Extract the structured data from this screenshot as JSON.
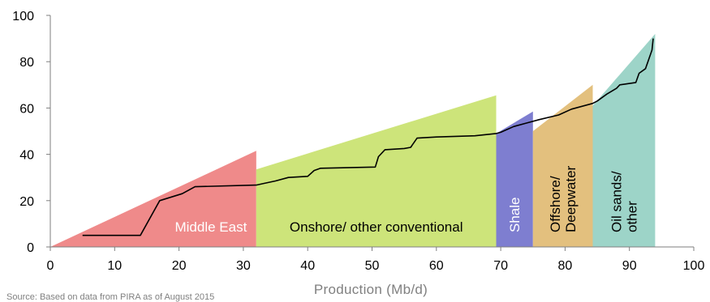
{
  "chart_data": {
    "type": "area",
    "xlabel": "Production (Mb/d)",
    "ylabel": "",
    "xlim": [
      0,
      100
    ],
    "ylim": [
      0,
      100
    ],
    "x_ticks": [
      0,
      10,
      20,
      30,
      40,
      50,
      60,
      70,
      80,
      90,
      100
    ],
    "y_ticks": [
      0,
      20,
      40,
      60,
      80,
      100
    ],
    "grid": false,
    "source_note": "Source: Based on data from PIRA as of August 2015",
    "regions": [
      {
        "name": "Middle East",
        "label_lines": [
          "Middle East"
        ],
        "label_color": "#ffffff",
        "label_orientation": "horizontal",
        "color": "#ef8a8a",
        "polygon": [
          [
            0,
            0
          ],
          [
            32,
            41.5
          ],
          [
            32,
            0
          ]
        ]
      },
      {
        "name": "Onshore/ other conventional",
        "label_lines": [
          "Onshore/ other conventional"
        ],
        "label_color": "#000000",
        "label_orientation": "horizontal",
        "color": "#cde47a",
        "polygon": [
          [
            32,
            0
          ],
          [
            32,
            33.5
          ],
          [
            69.3,
            65.5
          ],
          [
            69.3,
            0
          ]
        ]
      },
      {
        "name": "Shale",
        "label_lines": [
          "Shale"
        ],
        "label_color": "#ffffff",
        "label_orientation": "vertical",
        "color": "#7e7ed0",
        "polygon": [
          [
            69.3,
            0
          ],
          [
            69.3,
            49
          ],
          [
            75,
            58.5
          ],
          [
            75,
            0
          ]
        ]
      },
      {
        "name": "Offshore/ Deepwater",
        "label_lines": [
          "Offshore/",
          "Deepwater"
        ],
        "label_color": "#000000",
        "label_orientation": "vertical",
        "color": "#e3c07e",
        "polygon": [
          [
            75,
            0
          ],
          [
            75,
            50
          ],
          [
            84.3,
            70
          ],
          [
            84.3,
            0
          ]
        ]
      },
      {
        "name": "Oil sands/ other",
        "label_lines": [
          "Oil sands/",
          "other"
        ],
        "label_color": "#000000",
        "label_orientation": "vertical",
        "color": "#9dd4c8",
        "polygon": [
          [
            84.3,
            0
          ],
          [
            84.3,
            61
          ],
          [
            94,
            92
          ],
          [
            94,
            0
          ]
        ]
      }
    ],
    "series": [
      {
        "color": "#000000",
        "x": [
          5,
          14,
          17,
          20.5,
          22.5,
          32,
          33,
          35,
          37,
          40,
          41,
          42,
          50.5,
          51,
          52,
          55,
          56,
          57,
          60,
          66,
          69.3,
          70,
          72,
          74,
          76,
          79,
          81,
          84.3,
          85,
          86.5,
          88,
          88.5,
          91,
          91.5,
          92.5,
          93.5,
          93.7
        ],
        "y": [
          5,
          5,
          20,
          23,
          26,
          26.7,
          27.3,
          28.5,
          30,
          30.5,
          33,
          34,
          34.5,
          39,
          42,
          42.5,
          43,
          47,
          47.5,
          48,
          49,
          49.5,
          52,
          53.5,
          55,
          57,
          59.5,
          62,
          63,
          66,
          68.5,
          70,
          71,
          75,
          77,
          85,
          90
        ]
      }
    ]
  }
}
